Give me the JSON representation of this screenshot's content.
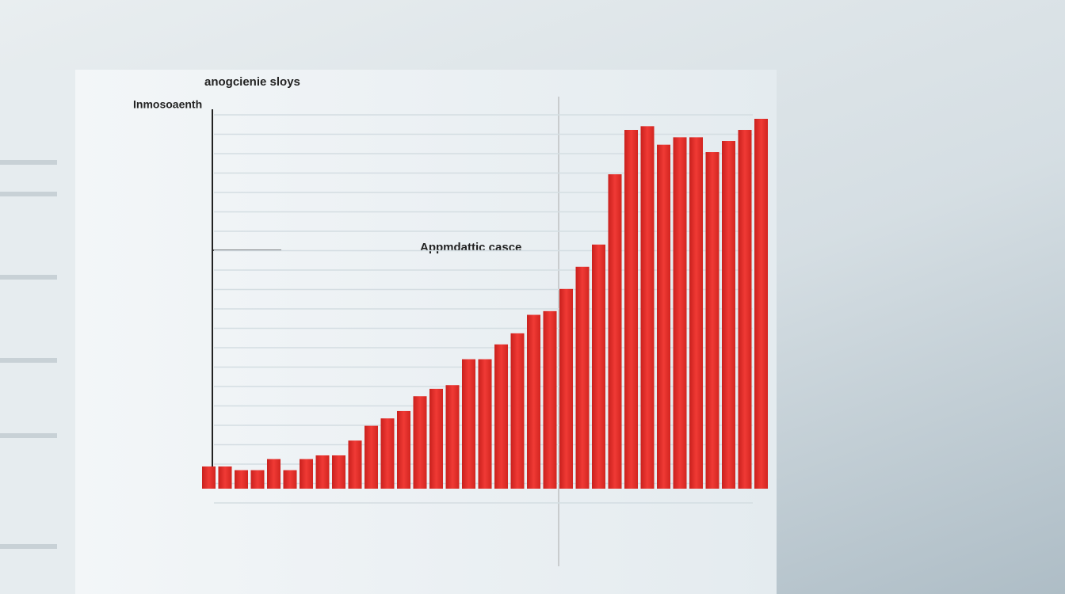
{
  "chart_data": {
    "type": "bar",
    "title": "anogcienie sloys",
    "axis_label": "Inmosoaenth",
    "annotation": "Appmdattic casce",
    "categories": [
      null,
      null,
      null,
      null,
      null,
      null,
      null,
      null,
      null,
      null,
      null,
      null,
      null,
      null,
      null,
      null,
      null,
      null,
      null,
      null,
      null,
      null,
      null,
      null,
      null,
      null,
      null,
      null,
      null,
      null,
      null,
      null,
      null,
      null,
      null
    ],
    "values": [
      6,
      6,
      5,
      5,
      8,
      5,
      8,
      9,
      9,
      13,
      17,
      19,
      21,
      25,
      27,
      28,
      35,
      35,
      39,
      42,
      47,
      48,
      54,
      60,
      66,
      85,
      97,
      98,
      93,
      95,
      95,
      91,
      94,
      97,
      100
    ],
    "color": "#e8332f",
    "ylim": [
      0,
      100
    ],
    "grid": true
  }
}
